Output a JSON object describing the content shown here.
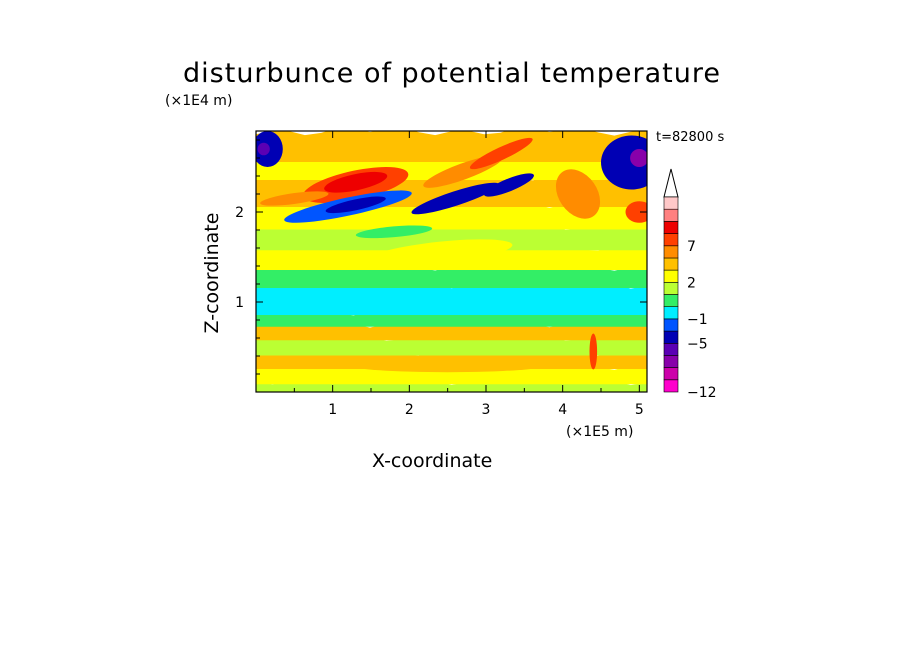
{
  "chart_data": {
    "type": "heatmap",
    "title": "disturbunce of potential temperature",
    "xlabel": "X-coordinate",
    "ylabel": "Z-coordinate",
    "x_unit": "(×1E5 m)",
    "z_unit": "(×1E4 m)",
    "time_label": "t=82800 s",
    "xlim": [
      0,
      5.1
    ],
    "ylim": [
      0,
      2.9
    ],
    "x_ticks": [
      {
        "value": 1,
        "label": "1"
      },
      {
        "value": 2,
        "label": "2"
      },
      {
        "value": 3,
        "label": "3"
      },
      {
        "value": 4,
        "label": "4"
      },
      {
        "value": 5,
        "label": "5"
      }
    ],
    "y_ticks": [
      {
        "value": 1,
        "label": "1"
      },
      {
        "value": 2,
        "label": "2"
      }
    ],
    "colorbar": {
      "levels": [
        -12,
        -10,
        -8,
        -6,
        -5,
        -3,
        -1,
        0,
        1,
        2,
        4,
        5,
        7,
        8,
        9,
        10
      ],
      "labels": [
        {
          "value": 7,
          "label": "7"
        },
        {
          "value": 2,
          "label": "2"
        },
        {
          "value": -1,
          "label": "−1"
        },
        {
          "value": -5,
          "label": "−5"
        },
        {
          "value": -12,
          "label": "−12"
        }
      ],
      "colors": [
        "#ff00cc",
        "#cc00aa",
        "#8800aa",
        "#5a00b4",
        "#0000b4",
        "#0055ff",
        "#00eeff",
        "#33ee66",
        "#bbff33",
        "#ffff00",
        "#ffc000",
        "#ff8c00",
        "#ff4000",
        "#ee0000",
        "#ff8080",
        "#ffc8c8"
      ]
    },
    "bands": [
      {
        "z": [
          0.0,
          0.13
        ],
        "class": 8
      },
      {
        "z": [
          0.13,
          0.3
        ],
        "class": 9
      },
      {
        "z": [
          0.3,
          0.45
        ],
        "class": 10
      },
      {
        "z": [
          0.45,
          0.62
        ],
        "class": 8
      },
      {
        "z": [
          0.62,
          0.77
        ],
        "class": 10
      },
      {
        "z": [
          0.77,
          0.9
        ],
        "class": 7
      },
      {
        "z": [
          0.9,
          1.2
        ],
        "class": 6
      },
      {
        "z": [
          1.2,
          1.4
        ],
        "class": 7
      },
      {
        "z": [
          1.4,
          1.62
        ],
        "class": 9
      },
      {
        "z": [
          1.62,
          1.85
        ],
        "class": 8
      },
      {
        "z": [
          1.85,
          2.1
        ],
        "class": 9
      },
      {
        "z": [
          2.1,
          2.4
        ],
        "class": 10
      },
      {
        "z": [
          2.4,
          2.6
        ],
        "class": 9
      },
      {
        "z": [
          2.6,
          2.9
        ],
        "class": 10
      }
    ],
    "features": [
      {
        "x": 1.3,
        "z": 2.3,
        "rx": 0.7,
        "rz": 0.16,
        "rot": -12,
        "class": 12
      },
      {
        "x": 1.3,
        "z": 2.33,
        "rx": 0.42,
        "rz": 0.09,
        "rot": -12,
        "class": 13
      },
      {
        "x": 1.2,
        "z": 2.06,
        "rx": 0.85,
        "rz": 0.1,
        "rot": -12,
        "class": 5
      },
      {
        "x": 1.3,
        "z": 2.08,
        "rx": 0.4,
        "rz": 0.06,
        "rot": -12,
        "class": 4
      },
      {
        "x": 2.6,
        "z": 2.15,
        "rx": 0.6,
        "rz": 0.08,
        "rot": -18,
        "class": 4
      },
      {
        "x": 3.3,
        "z": 2.3,
        "rx": 0.35,
        "rz": 0.07,
        "rot": -22,
        "class": 4
      },
      {
        "x": 2.7,
        "z": 2.45,
        "rx": 0.55,
        "rz": 0.09,
        "rot": -20,
        "class": 11
      },
      {
        "x": 3.2,
        "z": 2.65,
        "rx": 0.45,
        "rz": 0.07,
        "rot": -25,
        "class": 12
      },
      {
        "x": 0.15,
        "z": 2.7,
        "rx": 0.2,
        "rz": 0.2,
        "rot": 0,
        "class": 4
      },
      {
        "x": 0.1,
        "z": 2.7,
        "rx": 0.08,
        "rz": 0.07,
        "rot": 0,
        "class": 3
      },
      {
        "x": 4.9,
        "z": 2.55,
        "rx": 0.4,
        "rz": 0.3,
        "rot": 0,
        "class": 4
      },
      {
        "x": 5.0,
        "z": 2.6,
        "rx": 0.12,
        "rz": 0.1,
        "rot": 0,
        "class": 2
      },
      {
        "x": 5.0,
        "z": 2.0,
        "rx": 0.18,
        "rz": 0.12,
        "rot": 0,
        "class": 12
      },
      {
        "x": 4.2,
        "z": 2.2,
        "rx": 0.25,
        "rz": 0.3,
        "rot": -35,
        "class": 11
      },
      {
        "x": 2.4,
        "z": 1.55,
        "rx": 0.95,
        "rz": 0.12,
        "rot": -6,
        "class": 9
      },
      {
        "x": 0.5,
        "z": 2.15,
        "rx": 0.45,
        "rz": 0.06,
        "rot": -8,
        "class": 11
      },
      {
        "x": 2.5,
        "z": 0.3,
        "rx": 1.3,
        "rz": 0.08,
        "rot": 0,
        "class": 10
      },
      {
        "x": 4.4,
        "z": 0.45,
        "rx": 0.05,
        "rz": 0.2,
        "rot": 0,
        "class": 12
      },
      {
        "x": 1.8,
        "z": 1.78,
        "rx": 0.5,
        "rz": 0.06,
        "rot": -5,
        "class": 7
      }
    ]
  }
}
